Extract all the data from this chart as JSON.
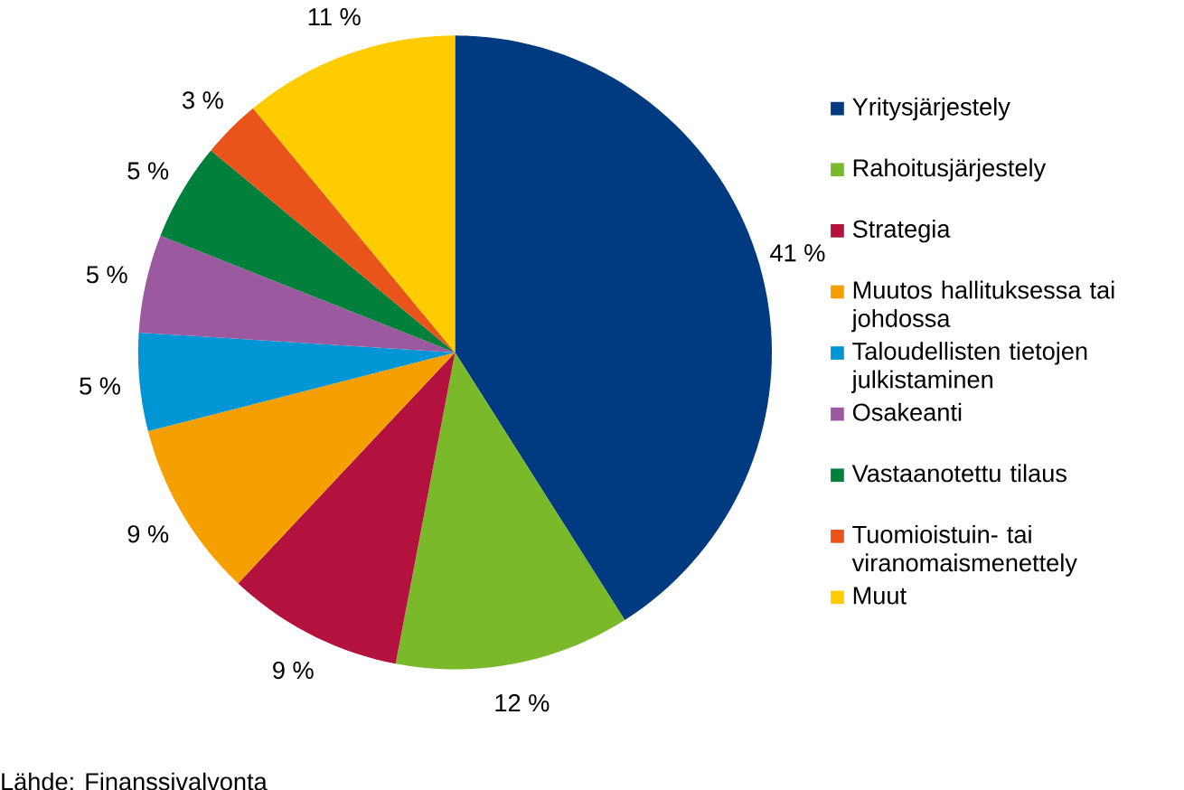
{
  "chart_data": {
    "type": "pie",
    "categories": [
      "Yritysjärjestely",
      "Rahoitusjärjestely",
      "Strategia",
      "Muutos hallituksessa tai johdossa",
      "Taloudellisten tietojen julkistaminen",
      "Osakeanti",
      "Vastaanotettu tilaus",
      "Tuomioistuin- tai viranomaismenettely",
      "Muut"
    ],
    "values": [
      41,
      12,
      9,
      9,
      5,
      5,
      5,
      3,
      11
    ],
    "value_labels": [
      "41 %",
      "12 %",
      "9 %",
      "9 %",
      "5 %",
      "5 %",
      "5 %",
      "3 %",
      "11 %"
    ],
    "colors": [
      "#003a80",
      "#7ab929",
      "#b3123f",
      "#f6a000",
      "#0096d6",
      "#9b5aa0",
      "#00803a",
      "#e8541a",
      "#ffcc00"
    ],
    "legend": "right",
    "annotations": [
      "Lähde: Finanssivalvonta"
    ]
  }
}
